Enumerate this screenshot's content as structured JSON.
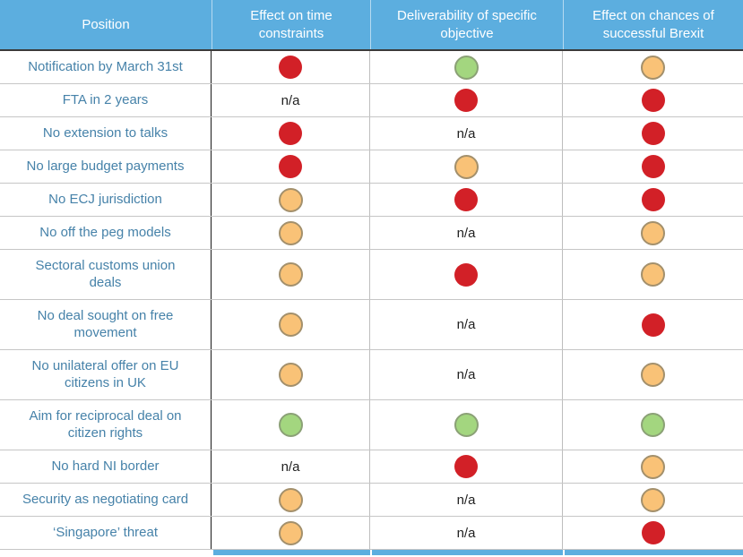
{
  "colors": {
    "header_bg": "#5CAEDF",
    "header_text": "#FFFFFF",
    "position_text": "#4682A9",
    "red_dot": "#D22027",
    "green_dot_fill": "#A3D67F",
    "green_dot_border": "#8BA176",
    "orange_dot_fill": "#F9C277",
    "orange_dot_border": "#A3906C",
    "na_text": "#1F1F1F",
    "row_divider": "#C6C6C6",
    "column_divider_dark": "#1A1A1A",
    "column_divider_light": "#BDBDBD"
  },
  "chart_data": {
    "type": "table",
    "columns": [
      "Position",
      "Effect on time constraints",
      "Deliverability of specific objective",
      "Effect on chances of successful Brexit"
    ],
    "status_legend": [
      "red",
      "orange",
      "green",
      "n/a"
    ],
    "rows": [
      {
        "position": "Notification by March 31st",
        "position_lines": [
          "Notification by March 31st"
        ],
        "statuses": [
          "red",
          "green",
          "orange"
        ]
      },
      {
        "position": "FTA in 2 years",
        "position_lines": [
          "FTA in 2 years"
        ],
        "statuses": [
          "n/a",
          "red",
          "red"
        ]
      },
      {
        "position": "No extension to talks",
        "position_lines": [
          "No extension to talks"
        ],
        "statuses": [
          "red",
          "n/a",
          "red"
        ]
      },
      {
        "position": "No large budget payments",
        "position_lines": [
          "No large budget payments"
        ],
        "statuses": [
          "red",
          "orange",
          "red"
        ]
      },
      {
        "position": "No ECJ jurisdiction",
        "position_lines": [
          "No ECJ jurisdiction"
        ],
        "statuses": [
          "orange",
          "red",
          "red"
        ]
      },
      {
        "position": "No off the peg models",
        "position_lines": [
          "No off the peg models"
        ],
        "statuses": [
          "orange",
          "n/a",
          "orange"
        ]
      },
      {
        "position": "Sectoral customs union deals",
        "position_lines": [
          "Sectoral customs union",
          "deals"
        ],
        "statuses": [
          "orange",
          "red",
          "orange"
        ]
      },
      {
        "position": "No deal sought on free movement",
        "position_lines": [
          "No deal sought on free",
          "movement"
        ],
        "statuses": [
          "orange",
          "n/a",
          "red"
        ]
      },
      {
        "position": "No unilateral offer on EU citizens in UK",
        "position_lines": [
          "No unilateral offer on EU",
          "citizens in UK"
        ],
        "statuses": [
          "orange",
          "n/a",
          "orange"
        ]
      },
      {
        "position": "Aim for reciprocal deal on citizen rights",
        "position_lines": [
          "Aim for reciprocal deal on",
          "citizen rights"
        ],
        "statuses": [
          "green",
          "green",
          "green"
        ]
      },
      {
        "position": "No hard NI border",
        "position_lines": [
          "No hard NI border"
        ],
        "statuses": [
          "n/a",
          "red",
          "orange"
        ]
      },
      {
        "position": "Security as negotiating card",
        "position_lines": [
          "Security as negotiating card"
        ],
        "statuses": [
          "orange",
          "n/a",
          "orange"
        ]
      },
      {
        "position": "‘Singapore’ threat",
        "position_lines": [
          "‘Singapore’ threat"
        ],
        "statuses": [
          "orange",
          "n/a",
          "red"
        ]
      }
    ]
  }
}
